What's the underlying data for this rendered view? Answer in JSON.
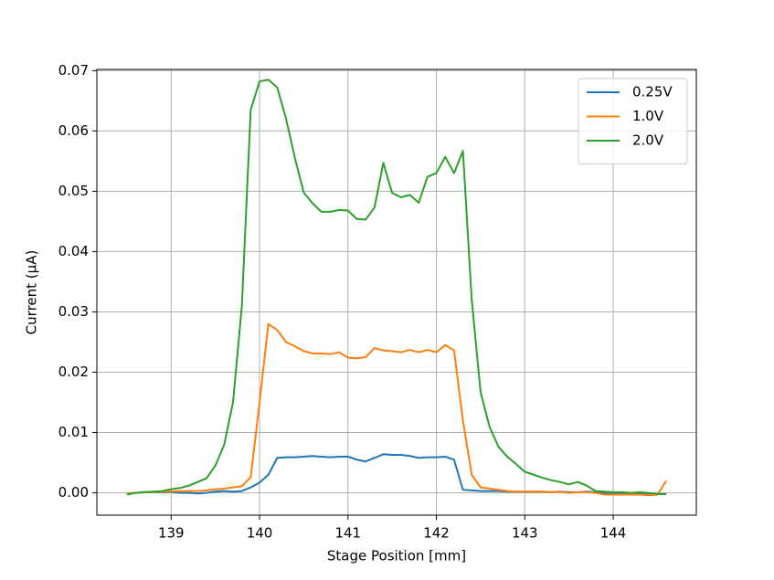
{
  "chart_data": {
    "type": "line",
    "xlabel": "Stage Position [mm]",
    "ylabel": "Current (µA)",
    "x": [
      138.5,
      138.6,
      138.7,
      138.8,
      138.9,
      139.0,
      139.1,
      139.2,
      139.3,
      139.4,
      139.5,
      139.6,
      139.7,
      139.8,
      139.9,
      140.0,
      140.1,
      140.2,
      140.3,
      140.4,
      140.5,
      140.6,
      140.7,
      140.8,
      140.9,
      141.0,
      141.1,
      141.2,
      141.3,
      141.4,
      141.5,
      141.6,
      141.7,
      141.8,
      141.9,
      142.0,
      142.1,
      142.2,
      142.3,
      142.4,
      142.5,
      142.6,
      142.7,
      142.8,
      142.9,
      143.0,
      143.1,
      143.2,
      143.3,
      143.4,
      143.5,
      143.6,
      143.7,
      143.8,
      143.9,
      144.0,
      144.1,
      144.2,
      144.3,
      144.4,
      144.5,
      144.6
    ],
    "series": [
      {
        "name": "0.25V",
        "color": "#1f77b4",
        "values": [
          -0.0002,
          0,
          0.0001,
          0.0001,
          0.0001,
          0.0001,
          0,
          0,
          -0.0001,
          0,
          0.0002,
          0.0003,
          0.0002,
          0.0003,
          0.0009,
          0.0017,
          0.003,
          0.0058,
          0.0059,
          0.0059,
          0.006,
          0.0061,
          0.006,
          0.0059,
          0.006,
          0.006,
          0.0055,
          0.0052,
          0.0058,
          0.0064,
          0.0063,
          0.0063,
          0.0061,
          0.0058,
          0.0059,
          0.0059,
          0.006,
          0.0055,
          0.0005,
          0.0004,
          0.0003,
          0.0003,
          0.0003,
          0.0002,
          0.0002,
          0.0002,
          0.0002,
          0.0002,
          0.0001,
          0.0002,
          0.0001,
          0.0001,
          0.0002,
          0.0001,
          0,
          0,
          0,
          -0.0001,
          -0.0001,
          -0.0001,
          -0.0002,
          -0.0002
        ]
      },
      {
        "name": "1.0V",
        "color": "#ff7f0e",
        "values": [
          -0.0001,
          0,
          0.0001,
          0.0001,
          0.0002,
          0.0002,
          0.0003,
          0.0003,
          0.0003,
          0.0004,
          0.0006,
          0.0007,
          0.0009,
          0.0011,
          0.0026,
          0.015,
          0.028,
          0.027,
          0.025,
          0.0243,
          0.0235,
          0.0231,
          0.0231,
          0.023,
          0.0233,
          0.0224,
          0.0223,
          0.0225,
          0.024,
          0.0236,
          0.0235,
          0.0233,
          0.0237,
          0.0233,
          0.0237,
          0.0233,
          0.0245,
          0.0236,
          0.012,
          0.003,
          0.0009,
          0.0007,
          0.0005,
          0.0003,
          0.0002,
          0.0002,
          0.0002,
          0.0002,
          0.0001,
          0.0002,
          0,
          0.0001,
          0.0001,
          0,
          -0.0003,
          -0.0003,
          -0.0003,
          -0.0003,
          -0.0003,
          -0.0004,
          -0.0003,
          0.002
        ]
      },
      {
        "name": "2.0V",
        "color": "#2ca02c",
        "values": [
          -0.0003,
          0,
          0.0001,
          0.0002,
          0.0003,
          0.0006,
          0.0008,
          0.0012,
          0.0018,
          0.0024,
          0.0045,
          0.008,
          0.015,
          0.031,
          0.0635,
          0.0682,
          0.0685,
          0.0672,
          0.062,
          0.0555,
          0.0498,
          0.048,
          0.0466,
          0.0466,
          0.0469,
          0.0468,
          0.0454,
          0.0453,
          0.0473,
          0.0547,
          0.0497,
          0.049,
          0.0494,
          0.0481,
          0.0524,
          0.053,
          0.0557,
          0.053,
          0.0567,
          0.032,
          0.0167,
          0.011,
          0.0077,
          0.006,
          0.0048,
          0.0035,
          0.003,
          0.0025,
          0.0021,
          0.0018,
          0.0014,
          0.0018,
          0.0012,
          0.0003,
          0.0002,
          0.0001,
          0.0001,
          0,
          0.0001,
          0,
          -0.0002,
          -0.0002
        ]
      }
    ],
    "xlim": [
      138.16,
      144.94
    ],
    "ylim": [
      -0.0037,
      0.0702
    ],
    "xticks": [
      139,
      140,
      141,
      142,
      143,
      144
    ],
    "yticks": [
      {
        "value": 0,
        "label": "0.00"
      },
      0.01,
      0.02,
      0.03,
      0.04,
      0.05,
      0.06,
      0.07
    ],
    "grid": true,
    "legend": "upper right"
  }
}
